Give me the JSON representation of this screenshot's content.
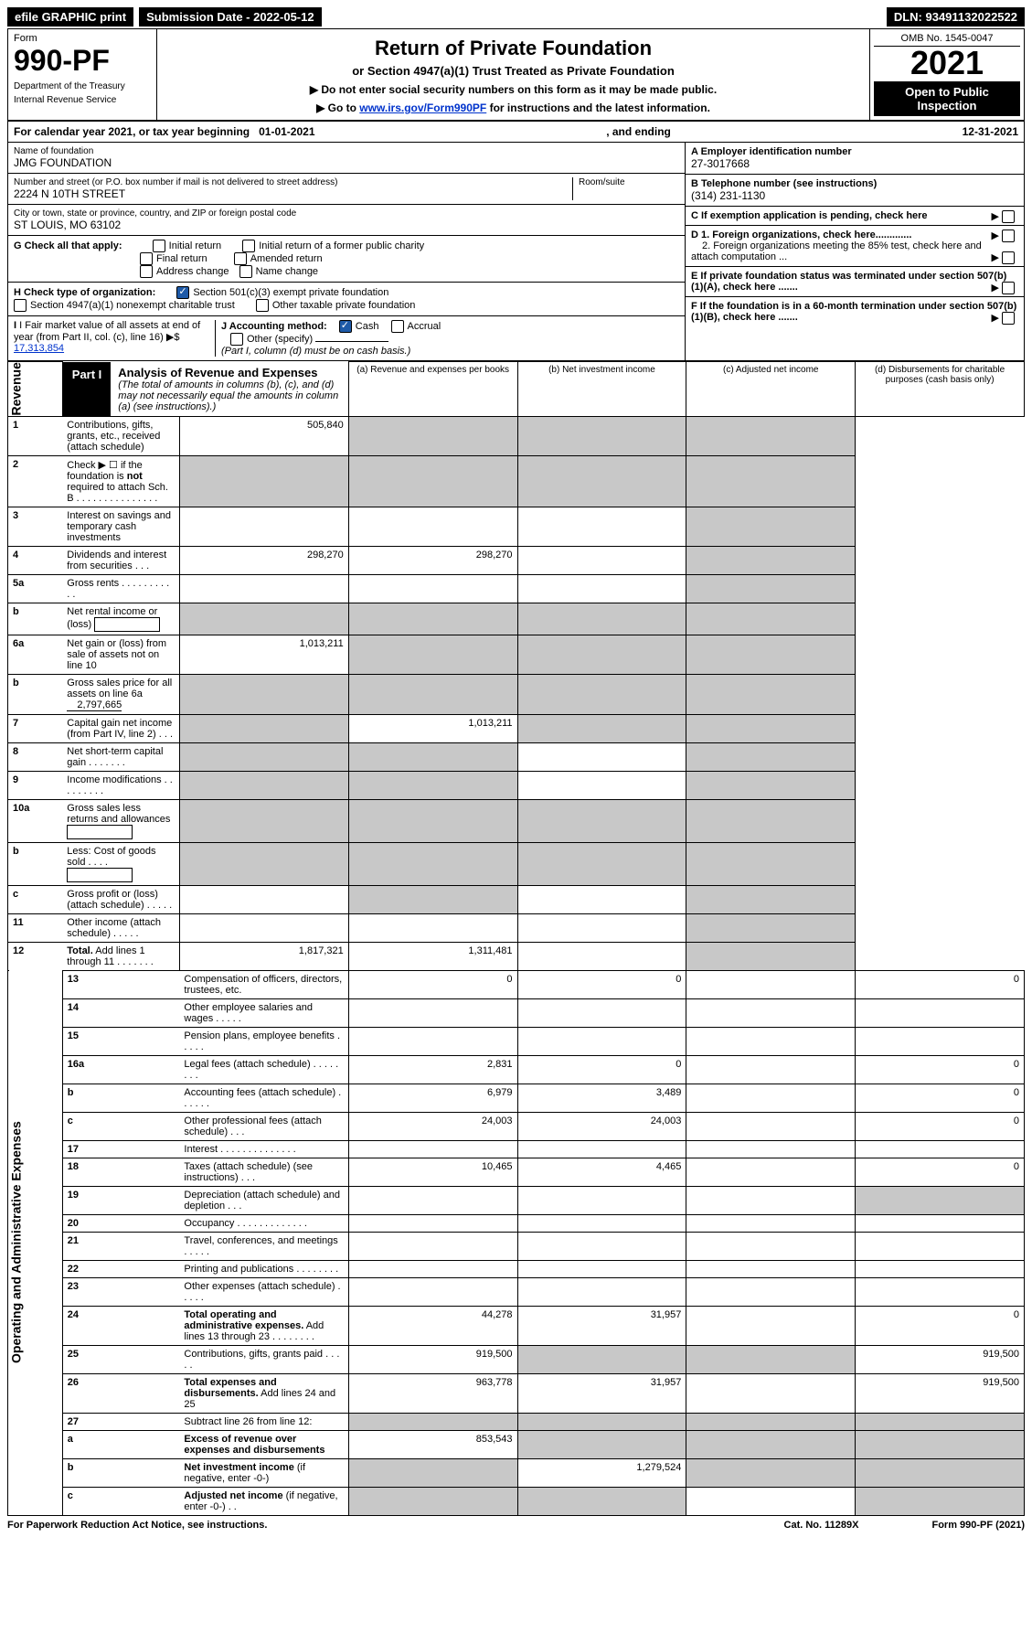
{
  "colors": {
    "black": "#000000",
    "white": "#ffffff",
    "blue_link": "#0033cc",
    "gray_cell": "#c8c8c8",
    "check_blue": "#1e5aa8"
  },
  "top_bar": {
    "efile": "efile GRAPHIC print",
    "submission_label": "Submission Date - 2022-05-12",
    "dln": "DLN: 93491132022522"
  },
  "header": {
    "form_label": "Form",
    "form_number": "990-PF",
    "dept1": "Department of the Treasury",
    "dept2": "Internal Revenue Service",
    "title": "Return of Private Foundation",
    "subtitle": "or Section 4947(a)(1) Trust Treated as Private Foundation",
    "instr1": "▶ Do not enter social security numbers on this form as it may be made public.",
    "instr2_prefix": "▶ Go to ",
    "instr2_link": "www.irs.gov/Form990PF",
    "instr2_suffix": " for instructions and the latest information.",
    "omb": "OMB No. 1545-0047",
    "year": "2021",
    "open": "Open to Public Inspection"
  },
  "calendar": {
    "prefix": "For calendar year 2021, or tax year beginning ",
    "begin": "01-01-2021",
    "mid": ", and ending ",
    "end": "12-31-2021"
  },
  "identity": {
    "name_label": "Name of foundation",
    "name": "JMG FOUNDATION",
    "addr_label": "Number and street (or P.O. box number if mail is not delivered to street address)",
    "addr": "2224 N 10TH STREET",
    "room_label": "Room/suite",
    "city_label": "City or town, state or province, country, and ZIP or foreign postal code",
    "city": "ST LOUIS, MO  63102",
    "ein_label": "A Employer identification number",
    "ein": "27-3017668",
    "phone_label": "B Telephone number (see instructions)",
    "phone": "(314) 231-1130",
    "c_label": "C If exemption application is pending, check here",
    "d1": "D 1. Foreign organizations, check here.............",
    "d2": "2. Foreign organizations meeting the 85% test, check here and attach computation ...",
    "e": "E  If private foundation status was terminated under section 507(b)(1)(A), check here .......",
    "f": "F  If the foundation is in a 60-month termination under section 507(b)(1)(B), check here ......."
  },
  "checks": {
    "g_label": "G Check all that apply:",
    "g_items": [
      "Initial return",
      "Initial return of a former public charity",
      "Final return",
      "Amended return",
      "Address change",
      "Name change"
    ],
    "h_label": "H Check type of organization:",
    "h1": "Section 501(c)(3) exempt private foundation",
    "h2": "Section 4947(a)(1) nonexempt charitable trust",
    "h3": "Other taxable private foundation",
    "i_label": "I Fair market value of all assets at end of year (from Part II, col. (c), line 16)",
    "i_value": "17,313,854",
    "j_label": "J Accounting method:",
    "j_cash": "Cash",
    "j_accrual": "Accrual",
    "j_other": "Other (specify)",
    "j_note": "(Part I, column (d) must be on cash basis.)"
  },
  "part1": {
    "label": "Part I",
    "title": "Analysis of Revenue and Expenses",
    "note": " (The total of amounts in columns (b), (c), and (d) may not necessarily equal the amounts in column (a) (see instructions).)",
    "col_a": "(a) Revenue and expenses per books",
    "col_b": "(b) Net investment income",
    "col_c": "(c) Adjusted net income",
    "col_d": "(d) Disbursements for charitable purposes (cash basis only)"
  },
  "sections": {
    "revenue": "Revenue",
    "expenses": "Operating and Administrative Expenses"
  },
  "lines": [
    {
      "n": "1",
      "desc": "Contributions, gifts, grants, etc., received (attach schedule)",
      "a": "505,840",
      "b": "gray",
      "c": "gray",
      "d": "gray"
    },
    {
      "n": "2",
      "desc": "Check ▶ ☐ if the foundation is <b>not</b> required to attach Sch. B  . . . . . . . . . . . . . . .",
      "a": "gray",
      "b": "gray",
      "c": "gray",
      "d": "gray"
    },
    {
      "n": "3",
      "desc": "Interest on savings and temporary cash investments",
      "a": "",
      "b": "",
      "c": "",
      "d": "gray"
    },
    {
      "n": "4",
      "desc": "Dividends and interest from securities  . . .",
      "a": "298,270",
      "b": "298,270",
      "c": "",
      "d": "gray"
    },
    {
      "n": "5a",
      "desc": "Gross rents  . . . . . . . . . . .",
      "a": "",
      "b": "",
      "c": "",
      "d": "gray"
    },
    {
      "n": "b",
      "desc": "Net rental income or (loss) ",
      "a": "gray",
      "b": "gray",
      "c": "gray",
      "d": "gray",
      "box": true
    },
    {
      "n": "6a",
      "desc": "Net gain or (loss) from sale of assets not on line 10",
      "a": "1,013,211",
      "b": "gray",
      "c": "gray",
      "d": "gray"
    },
    {
      "n": "b",
      "desc": "Gross sales price for all assets on line 6a",
      "a": "gray",
      "b": "gray",
      "c": "gray",
      "d": "gray",
      "inline": "2,797,665"
    },
    {
      "n": "7",
      "desc": "Capital gain net income (from Part IV, line 2)  . . .",
      "a": "gray",
      "b": "1,013,211",
      "c": "gray",
      "d": "gray"
    },
    {
      "n": "8",
      "desc": "Net short-term capital gain  . . . . . . .",
      "a": "gray",
      "b": "gray",
      "c": "",
      "d": "gray"
    },
    {
      "n": "9",
      "desc": "Income modifications  . . . . . . . . .",
      "a": "gray",
      "b": "gray",
      "c": "",
      "d": "gray"
    },
    {
      "n": "10a",
      "desc": "Gross sales less returns and allowances",
      "a": "gray",
      "b": "gray",
      "c": "gray",
      "d": "gray",
      "box": true
    },
    {
      "n": "b",
      "desc": "Less: Cost of goods sold  . . . .",
      "a": "gray",
      "b": "gray",
      "c": "gray",
      "d": "gray",
      "box": true
    },
    {
      "n": "c",
      "desc": "Gross profit or (loss) (attach schedule)  . . . . .",
      "a": "",
      "b": "gray",
      "c": "",
      "d": "gray"
    },
    {
      "n": "11",
      "desc": "Other income (attach schedule)  . . . . .",
      "a": "",
      "b": "",
      "c": "",
      "d": "gray"
    },
    {
      "n": "12",
      "desc": "<b>Total.</b> Add lines 1 through 11  . . . . . . .",
      "a": "1,817,321",
      "b": "1,311,481",
      "c": "",
      "d": "gray"
    },
    {
      "n": "13",
      "desc": "Compensation of officers, directors, trustees, etc.",
      "a": "0",
      "b": "0",
      "c": "",
      "d": "0",
      "section": "expenses"
    },
    {
      "n": "14",
      "desc": "Other employee salaries and wages  . . . . .",
      "a": "",
      "b": "",
      "c": "",
      "d": ""
    },
    {
      "n": "15",
      "desc": "Pension plans, employee benefits  . . . . .",
      "a": "",
      "b": "",
      "c": "",
      "d": ""
    },
    {
      "n": "16a",
      "desc": "Legal fees (attach schedule)  . . . . . . . .",
      "a": "2,831",
      "b": "0",
      "c": "",
      "d": "0"
    },
    {
      "n": "b",
      "desc": "Accounting fees (attach schedule)  . . . . . .",
      "a": "6,979",
      "b": "3,489",
      "c": "",
      "d": "0"
    },
    {
      "n": "c",
      "desc": "Other professional fees (attach schedule)  . . .",
      "a": "24,003",
      "b": "24,003",
      "c": "",
      "d": "0"
    },
    {
      "n": "17",
      "desc": "Interest  . . . . . . . . . . . . . .",
      "a": "",
      "b": "",
      "c": "",
      "d": ""
    },
    {
      "n": "18",
      "desc": "Taxes (attach schedule) (see instructions)  . . .",
      "a": "10,465",
      "b": "4,465",
      "c": "",
      "d": "0"
    },
    {
      "n": "19",
      "desc": "Depreciation (attach schedule) and depletion  . . .",
      "a": "",
      "b": "",
      "c": "",
      "d": "gray"
    },
    {
      "n": "20",
      "desc": "Occupancy  . . . . . . . . . . . . .",
      "a": "",
      "b": "",
      "c": "",
      "d": ""
    },
    {
      "n": "21",
      "desc": "Travel, conferences, and meetings  . . . . .",
      "a": "",
      "b": "",
      "c": "",
      "d": ""
    },
    {
      "n": "22",
      "desc": "Printing and publications  . . . . . . . .",
      "a": "",
      "b": "",
      "c": "",
      "d": ""
    },
    {
      "n": "23",
      "desc": "Other expenses (attach schedule)  . . . . .",
      "a": "",
      "b": "",
      "c": "",
      "d": ""
    },
    {
      "n": "24",
      "desc": "<b>Total operating and administrative expenses.</b> Add lines 13 through 23  . . . . . . . .",
      "a": "44,278",
      "b": "31,957",
      "c": "",
      "d": "0"
    },
    {
      "n": "25",
      "desc": "Contributions, gifts, grants paid  . . . . .",
      "a": "919,500",
      "b": "gray",
      "c": "gray",
      "d": "919,500"
    },
    {
      "n": "26",
      "desc": "<b>Total expenses and disbursements.</b> Add lines 24 and 25",
      "a": "963,778",
      "b": "31,957",
      "c": "",
      "d": "919,500"
    },
    {
      "n": "27",
      "desc": "Subtract line 26 from line 12:",
      "a": "gray",
      "b": "gray",
      "c": "gray",
      "d": "gray"
    },
    {
      "n": "a",
      "desc": "<b>Excess of revenue over expenses and disbursements</b>",
      "a": "853,543",
      "b": "gray",
      "c": "gray",
      "d": "gray"
    },
    {
      "n": "b",
      "desc": "<b>Net investment income</b> (if negative, enter -0-)",
      "a": "gray",
      "b": "1,279,524",
      "c": "gray",
      "d": "gray"
    },
    {
      "n": "c",
      "desc": "<b>Adjusted net income</b> (if negative, enter -0-)  . .",
      "a": "gray",
      "b": "gray",
      "c": "",
      "d": "gray"
    }
  ],
  "footer": {
    "left": "For Paperwork Reduction Act Notice, see instructions.",
    "mid": "Cat. No. 11289X",
    "right": "Form 990-PF (2021)"
  }
}
